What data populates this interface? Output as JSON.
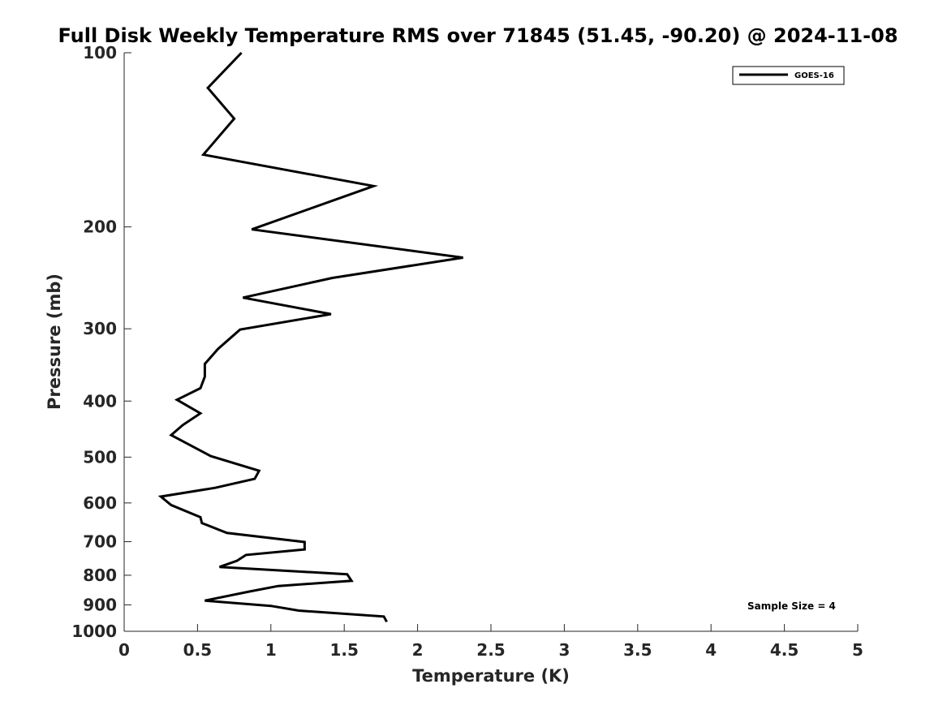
{
  "chart_data": {
    "type": "line",
    "title": "Full Disk Weekly Temperature RMS over 71845 (51.45, -90.20) @ 2024-11-08",
    "xlabel": "Temperature (K)",
    "ylabel": "Pressure (mb)",
    "xlim": [
      0,
      5
    ],
    "ylim": [
      100,
      1000
    ],
    "y_scale": "log",
    "y_reversed": true,
    "x_ticks": [
      "0",
      "0.5",
      "1",
      "1.5",
      "2",
      "2.5",
      "3",
      "3.5",
      "4",
      "4.5",
      "5"
    ],
    "y_ticks": [
      "100",
      "200",
      "300",
      "400",
      "500",
      "600",
      "700",
      "800",
      "900",
      "1000"
    ],
    "grid": false,
    "legend": {
      "position": "top-right",
      "entries": [
        "GOES-16"
      ]
    },
    "annotation": "Sample Size = 4",
    "series": [
      {
        "name": "GOES-16",
        "color": "#000000",
        "points": [
          [
            0.8,
            100
          ],
          [
            0.57,
            115
          ],
          [
            0.75,
            130
          ],
          [
            0.54,
            150
          ],
          [
            1.7,
            170
          ],
          [
            0.87,
            202
          ],
          [
            2.31,
            226
          ],
          [
            1.42,
            245
          ],
          [
            0.81,
            265
          ],
          [
            1.41,
            283
          ],
          [
            0.79,
            301
          ],
          [
            0.64,
            325
          ],
          [
            0.55,
            345
          ],
          [
            0.55,
            363
          ],
          [
            0.52,
            380
          ],
          [
            0.36,
            398
          ],
          [
            0.52,
            420
          ],
          [
            0.4,
            440
          ],
          [
            0.32,
            458
          ],
          [
            0.59,
            498
          ],
          [
            0.92,
            528
          ],
          [
            0.89,
            545
          ],
          [
            0.62,
            565
          ],
          [
            0.25,
            585
          ],
          [
            0.32,
            605
          ],
          [
            0.52,
            635
          ],
          [
            0.53,
            650
          ],
          [
            0.7,
            676
          ],
          [
            1.23,
            701
          ],
          [
            1.23,
            722
          ],
          [
            0.83,
            738
          ],
          [
            0.77,
            755
          ],
          [
            0.65,
            774
          ],
          [
            1.52,
            797
          ],
          [
            1.55,
            818
          ],
          [
            1.05,
            835
          ],
          [
            0.85,
            854
          ],
          [
            0.55,
            885
          ],
          [
            1.0,
            904
          ],
          [
            1.19,
            921
          ],
          [
            1.77,
            943
          ],
          [
            1.79,
            963
          ]
        ]
      }
    ]
  }
}
